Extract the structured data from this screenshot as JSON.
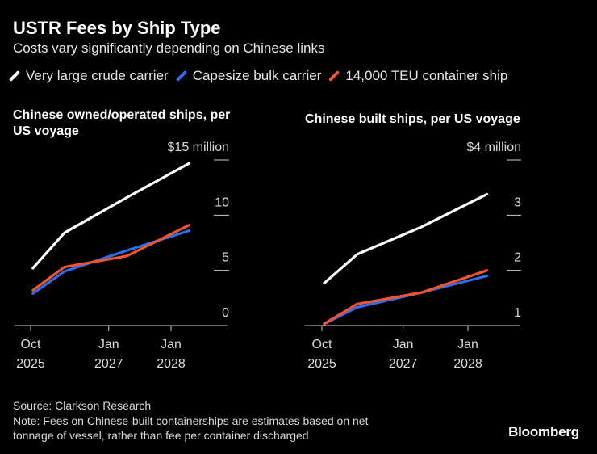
{
  "title": "USTR Fees by Ship Type",
  "subtitle": "Costs vary significantly depending on Chinese links",
  "legend": [
    {
      "name": "Very large crude carrier",
      "color": "#ffffff"
    },
    {
      "name": "Capesize bulk carrier",
      "color": "#2d6ef0"
    },
    {
      "name": "14,000 TEU container ship",
      "color": "#f2542d"
    }
  ],
  "chart_data": [
    {
      "type": "line",
      "title": "Chinese owned/operated ships, per US voyage",
      "title_lines": [
        "Chinese owned/operated ships, per",
        "US voyage"
      ],
      "y_unit_label": "$15 million",
      "ylim": [
        0,
        15
      ],
      "yticks": [
        {
          "value": 0,
          "label": "0"
        },
        {
          "value": 5,
          "label": "5"
        },
        {
          "value": 10,
          "label": "10"
        },
        {
          "value": 15,
          "label": "$15 million"
        }
      ],
      "xlim": [
        "2025-10-01",
        "2028-06-01"
      ],
      "xticks": [
        {
          "x": "2025-10-01",
          "line1": "Oct",
          "line2": "2025"
        },
        {
          "x": "2027-01-01",
          "line1": "Jan",
          "line2": "2027"
        },
        {
          "x": "2028-01-01",
          "line1": "Jan",
          "line2": "2028"
        }
      ],
      "x": [
        "2025-10-14",
        "2026-04-17",
        "2027-04-17",
        "2028-04-17"
      ],
      "series": [
        {
          "name": "Very large crude carrier",
          "color": "#ffffff",
          "values": [
            5.2,
            8.4,
            11.6,
            14.7
          ]
        },
        {
          "name": "Capesize bulk carrier",
          "color": "#2d6ef0",
          "values": [
            2.9,
            4.9,
            6.8,
            8.6
          ]
        },
        {
          "name": "14,000 TEU container ship",
          "color": "#f2542d",
          "values": [
            3.2,
            5.3,
            6.3,
            9.1
          ]
        }
      ]
    },
    {
      "type": "line",
      "title": "Chinese built ships, per US voyage",
      "title_lines": [
        "Chinese built ships, per US voyage"
      ],
      "y_unit_label": "$4 million",
      "ylim": [
        1,
        4
      ],
      "yticks": [
        {
          "value": 1,
          "label": "1"
        },
        {
          "value": 2,
          "label": "2"
        },
        {
          "value": 3,
          "label": "3"
        },
        {
          "value": 4,
          "label": "$4 million"
        }
      ],
      "xlim": [
        "2025-10-01",
        "2028-06-01"
      ],
      "xticks": [
        {
          "x": "2025-10-01",
          "line1": "Oct",
          "line2": "2025"
        },
        {
          "x": "2027-01-01",
          "line1": "Jan",
          "line2": "2027"
        },
        {
          "x": "2028-01-01",
          "line1": "Jan",
          "line2": "2028"
        }
      ],
      "x": [
        "2025-10-14",
        "2026-04-17",
        "2027-04-17",
        "2028-04-17"
      ],
      "series": [
        {
          "name": "Very large crude carrier",
          "color": "#ffffff",
          "values": [
            1.77,
            2.29,
            2.79,
            3.38
          ]
        },
        {
          "name": "Capesize bulk carrier",
          "color": "#2d6ef0",
          "values": [
            1.03,
            1.33,
            1.6,
            1.9
          ]
        },
        {
          "name": "14,000 TEU container ship",
          "color": "#f2542d",
          "values": [
            1.03,
            1.39,
            1.6,
            2.0
          ]
        }
      ]
    }
  ],
  "footer": {
    "source": "Source: Clarkson Research",
    "note_line1": "Note: Fees on Chinese-built containerships are estimates based on net",
    "note_line2": "tonnage of vessel, rather than fee per container discharged"
  },
  "brand": "Bloomberg"
}
